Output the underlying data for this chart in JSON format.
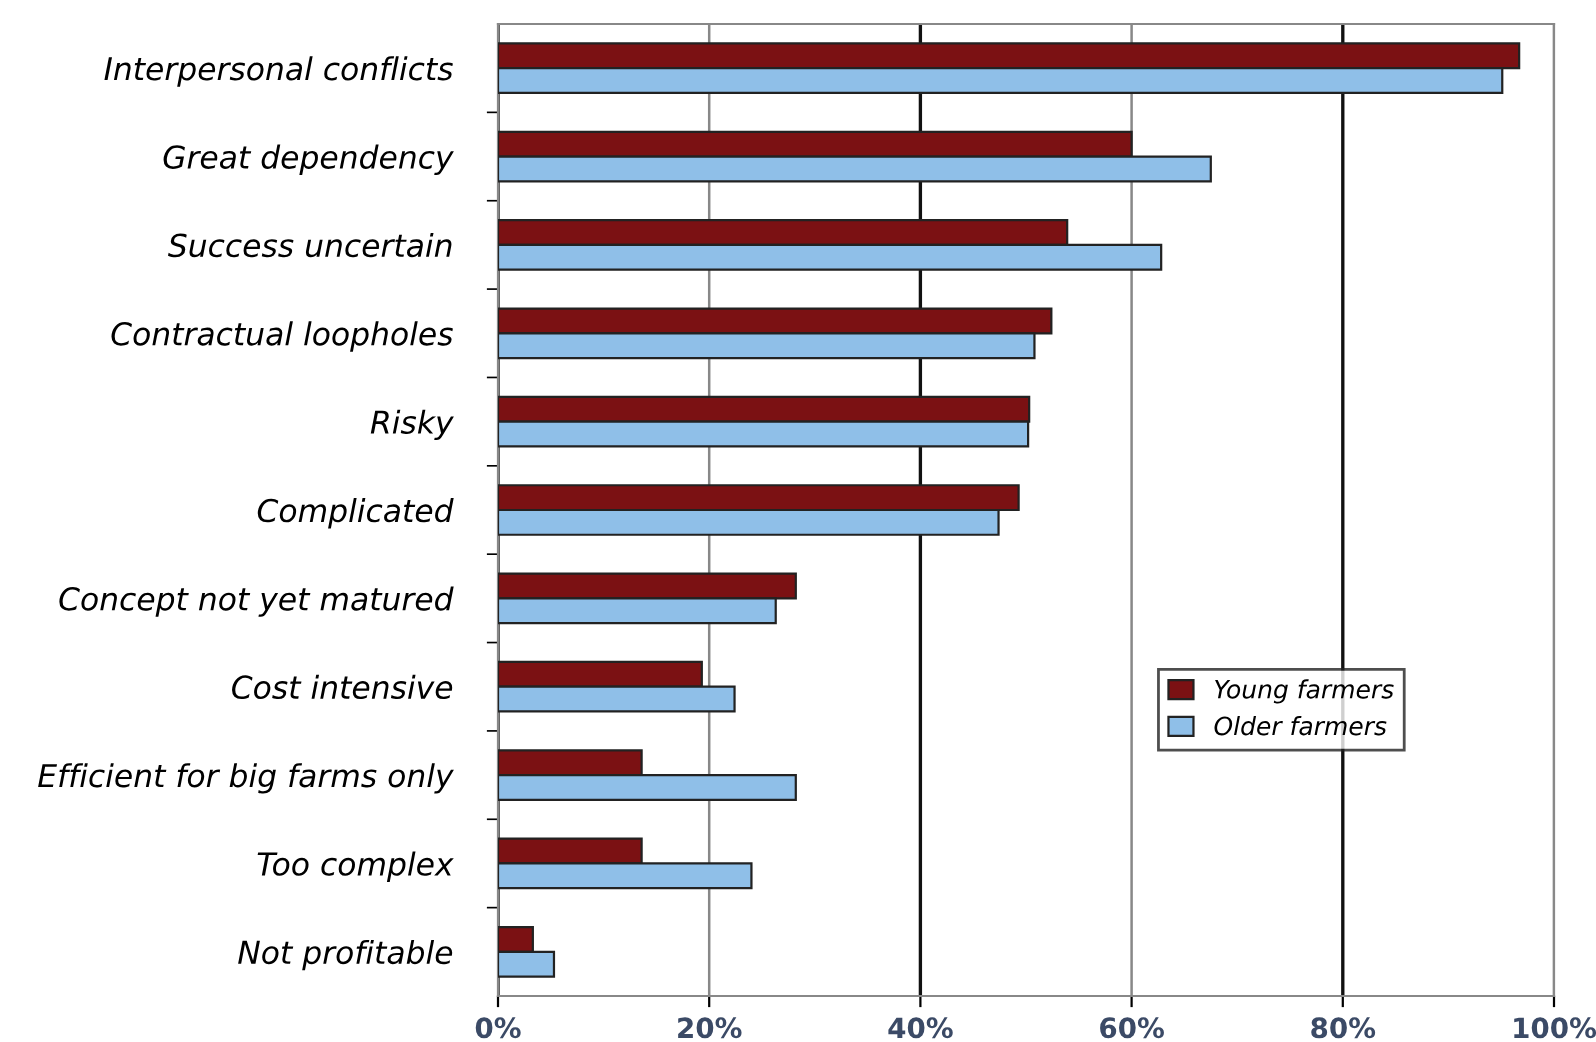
{
  "chart_data": {
    "type": "bar",
    "orientation": "horizontal",
    "categories": [
      "Interpersonal conflicts",
      "Great dependency",
      "Success uncertain",
      "Contractual loopholes",
      "Risky",
      "Complicated",
      "Concept not yet matured",
      "Cost intensive",
      "Efficient for big farms only",
      "Too complex",
      "Not profitable"
    ],
    "series": [
      {
        "name": "Young farmers",
        "color": "#7b1113",
        "values": [
          96.7,
          60,
          53.9,
          52.4,
          50.3,
          49.3,
          28.2,
          19.3,
          13.6,
          13.6,
          3.3
        ]
      },
      {
        "name": "Older farmers",
        "color": "#8fbfe8",
        "values": [
          95.1,
          67.5,
          62.8,
          50.8,
          50.2,
          47.4,
          26.3,
          22.4,
          28.2,
          24.0,
          5.3
        ]
      }
    ],
    "xlim": [
      0,
      100
    ],
    "xticks": [
      {
        "value": 0,
        "label": "0%"
      },
      {
        "value": 20,
        "label": "20%"
      },
      {
        "value": 40,
        "label": "40%"
      },
      {
        "value": 60,
        "label": "60%"
      },
      {
        "value": 80,
        "label": "80%"
      },
      {
        "value": 100,
        "label": "100%"
      }
    ],
    "grid": "x",
    "legend": "lower right"
  }
}
